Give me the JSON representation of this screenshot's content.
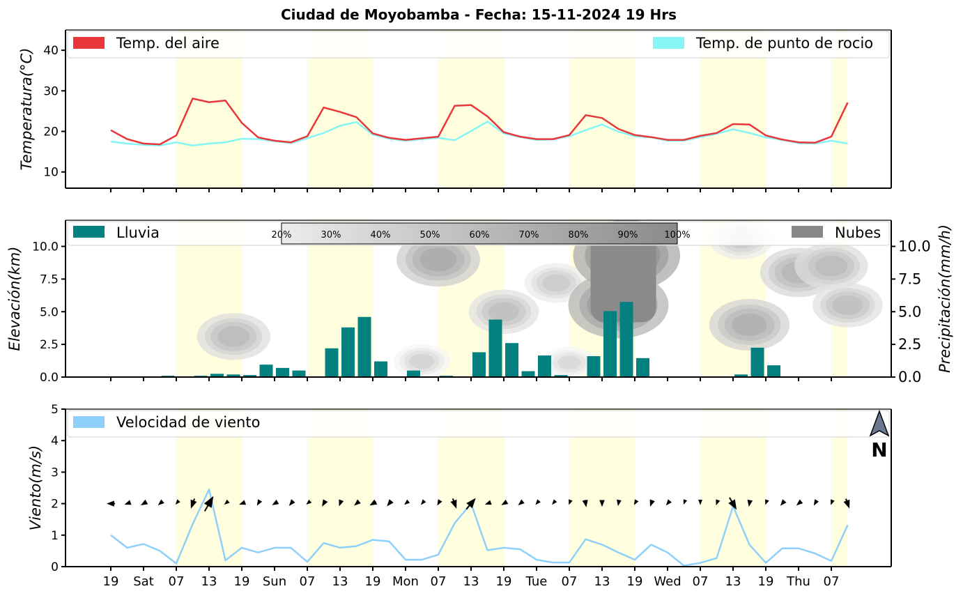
{
  "title": "Ciudad de Moyobamba   -   Fecha: 15-11-2024 19 Hrs",
  "north_label": "N",
  "chart_data": [
    {
      "type": "line",
      "ylabel": "Temperatura(°C)",
      "yticks": [
        10,
        20,
        30,
        40
      ],
      "ylim": [
        6,
        45
      ],
      "legend": {
        "placement": "top",
        "entries": [
          "Temp. del aire",
          "Temp. de punto de rocio"
        ]
      },
      "series": [
        {
          "name": "Temp. del aire",
          "color": "#e8373a",
          "values": [
            20.3,
            18.1,
            17.0,
            16.8,
            19.0,
            28.1,
            27.2,
            27.6,
            22.1,
            18.5,
            17.7,
            17.3,
            18.8,
            25.9,
            24.8,
            23.5,
            19.5,
            18.4,
            17.9,
            18.3,
            18.7,
            26.3,
            26.5,
            23.7,
            19.8,
            18.7,
            18.1,
            18.1,
            19.1,
            24.0,
            23.3,
            20.6,
            19.1,
            18.6,
            17.9,
            17.9,
            18.9,
            19.6,
            21.8,
            21.7,
            19.0,
            18.0,
            17.3,
            17.2,
            18.7,
            27.1
          ]
        },
        {
          "name": "Temp. de punto de rocio",
          "color": "#86f5f5",
          "values": [
            17.5,
            17.0,
            16.7,
            16.5,
            17.3,
            16.5,
            17.0,
            17.3,
            18.2,
            18.1,
            17.6,
            17.1,
            18.3,
            19.6,
            21.4,
            22.3,
            19.2,
            18.2,
            17.7,
            18.1,
            18.4,
            17.8,
            20.1,
            22.4,
            19.5,
            18.6,
            17.9,
            18.0,
            18.8,
            20.3,
            21.7,
            19.9,
            18.8,
            18.5,
            17.7,
            17.7,
            18.6,
            19.4,
            20.5,
            19.6,
            18.5,
            17.9,
            17.1,
            17.0,
            17.7,
            17.0
          ]
        }
      ]
    },
    {
      "type": "bar",
      "ylabel_left": "Elevación(km)",
      "ylabel_right": "Precipitación(mm/h)",
      "yticks": [
        "0.0",
        "2.5",
        "5.0",
        "7.5",
        "10.0"
      ],
      "ylim": [
        0,
        12
      ],
      "legend": {
        "placement": "top",
        "entries": [
          "Lluvia",
          "Nubes"
        ]
      },
      "cloud_scale_labels": [
        "20%",
        "30%",
        "40%",
        "50%",
        "60%",
        "70%",
        "80%",
        "90%",
        "100%"
      ],
      "series": [
        {
          "name": "Lluvia",
          "color": "#058080",
          "values": [
            0,
            0,
            0,
            0.1,
            0,
            0.1,
            0.25,
            0.2,
            0.15,
            0.95,
            0.7,
            0.5,
            0,
            2.2,
            3.8,
            4.6,
            1.2,
            0,
            0.5,
            0,
            0.1,
            0,
            1.9,
            4.4,
            2.6,
            0.45,
            1.65,
            0.15,
            0,
            1.6,
            5.05,
            5.75,
            1.45,
            0,
            0,
            0,
            0,
            0,
            0.2,
            2.25,
            0.9,
            0,
            0,
            0,
            0,
            0
          ]
        }
      ],
      "clouds": [
        {
          "x": 7.5,
          "elev": 3.1,
          "level": 0.5
        },
        {
          "x": 20.0,
          "elev": 9.0,
          "level": 0.65
        },
        {
          "x": 24.0,
          "elev": 5.0,
          "level": 0.45
        },
        {
          "x": 27.2,
          "elev": 7.2,
          "level": 0.35
        },
        {
          "x": 31.5,
          "elev": 9.3,
          "level": 1.0
        },
        {
          "x": 31.0,
          "elev": 5.5,
          "level": 0.9
        },
        {
          "x": 39.0,
          "elev": 4.0,
          "level": 0.6
        },
        {
          "x": 38.5,
          "elev": 10.5,
          "level": 0.35
        },
        {
          "x": 42.0,
          "elev": 8.0,
          "level": 0.55
        },
        {
          "x": 44.0,
          "elev": 8.5,
          "level": 0.5
        },
        {
          "x": 45.0,
          "elev": 5.5,
          "level": 0.45
        },
        {
          "x": 19.0,
          "elev": 1.2,
          "level": 0.25
        },
        {
          "x": 28.0,
          "elev": 1.1,
          "level": 0.2
        }
      ]
    },
    {
      "type": "line",
      "ylabel": "Viento(m/s)",
      "yticks": [
        0,
        1,
        2,
        3,
        4,
        5
      ],
      "ylim": [
        0,
        5
      ],
      "legend": {
        "placement": "top-left",
        "entries": [
          "Velocidad de viento"
        ]
      },
      "series": [
        {
          "name": "Velocidad de viento",
          "color": "#8fd0fb",
          "values": [
            1.0,
            0.6,
            0.72,
            0.5,
            0.1,
            1.35,
            2.45,
            0.2,
            0.6,
            0.45,
            0.6,
            0.6,
            0.15,
            0.75,
            0.6,
            0.65,
            0.85,
            0.8,
            0.22,
            0.22,
            0.38,
            1.38,
            2.0,
            0.52,
            0.6,
            0.55,
            0.22,
            0.13,
            0.13,
            0.87,
            0.7,
            0.45,
            0.22,
            0.7,
            0.45,
            0.03,
            0.12,
            0.27,
            1.92,
            0.7,
            0.12,
            0.58,
            0.58,
            0.42,
            0.18,
            1.32
          ]
        }
      ],
      "wind_vectors_deg": [
        270,
        250,
        240,
        230,
        220,
        200,
        30,
        230,
        250,
        210,
        240,
        220,
        230,
        210,
        200,
        230,
        240,
        220,
        230,
        220,
        210,
        160,
        40,
        250,
        240,
        230,
        220,
        220,
        200,
        170,
        180,
        190,
        210,
        200,
        220,
        200,
        180,
        200,
        150,
        190,
        200,
        220,
        230,
        210,
        200,
        160
      ]
    }
  ],
  "xaxis": {
    "tick_labels": [
      "19",
      "Sat",
      "07",
      "13",
      "19",
      "Sun",
      "07",
      "13",
      "19",
      "Mon",
      "07",
      "13",
      "19",
      "Tue",
      "07",
      "13",
      "19",
      "Wed",
      "07",
      "13",
      "19",
      "Thu",
      "07"
    ],
    "tick_index": [
      0,
      2,
      4,
      6,
      8,
      10,
      12,
      14,
      16,
      18,
      20,
      22,
      24,
      26,
      28,
      30,
      32,
      34,
      36,
      38,
      40,
      42,
      44
    ],
    "day_bands": [
      [
        4,
        8
      ],
      [
        12,
        16
      ],
      [
        20,
        24
      ],
      [
        28,
        32
      ],
      [
        36,
        40
      ],
      [
        44,
        46
      ]
    ]
  }
}
